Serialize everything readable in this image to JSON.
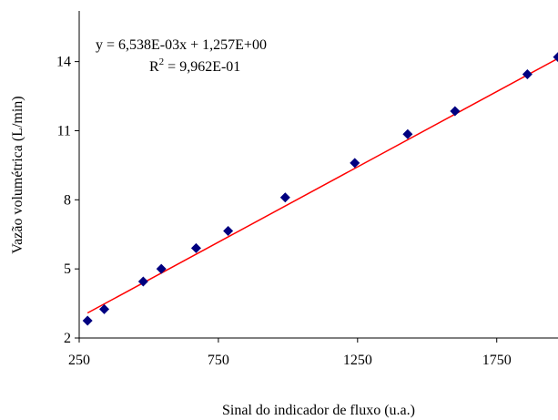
{
  "chart_data": {
    "type": "scatter",
    "xlabel": "Sinal do indicador de fluxo (u.a.)",
    "ylabel": "Vazão volumétrica (L/min)",
    "xlim": [
      250,
      1970
    ],
    "ylim": [
      2,
      16.2
    ],
    "xticks": [
      250,
      750,
      1250,
      1750
    ],
    "yticks": [
      2,
      5,
      8,
      11,
      14
    ],
    "grid": false,
    "legend": "none",
    "series": [
      {
        "marker": "diamond",
        "color": "#000080",
        "x": [
          280,
          340,
          480,
          545,
          670,
          785,
          990,
          1240,
          1430,
          1600,
          1860,
          1970
        ],
        "y": [
          2.75,
          3.25,
          4.45,
          5.0,
          5.9,
          6.65,
          8.1,
          9.6,
          10.85,
          11.85,
          13.45,
          14.2
        ]
      }
    ],
    "trendline": {
      "type": "linear",
      "color": "#ff0000",
      "slope": 0.006538,
      "intercept": 1.257,
      "x_range": [
        280,
        1970
      ]
    },
    "annotations": {
      "equation": "y = 6,538E-03x + 1,257E+00",
      "r2_prefix": "R",
      "r2_exponent": "2",
      "r2_value": " = 9,962E-01"
    }
  }
}
